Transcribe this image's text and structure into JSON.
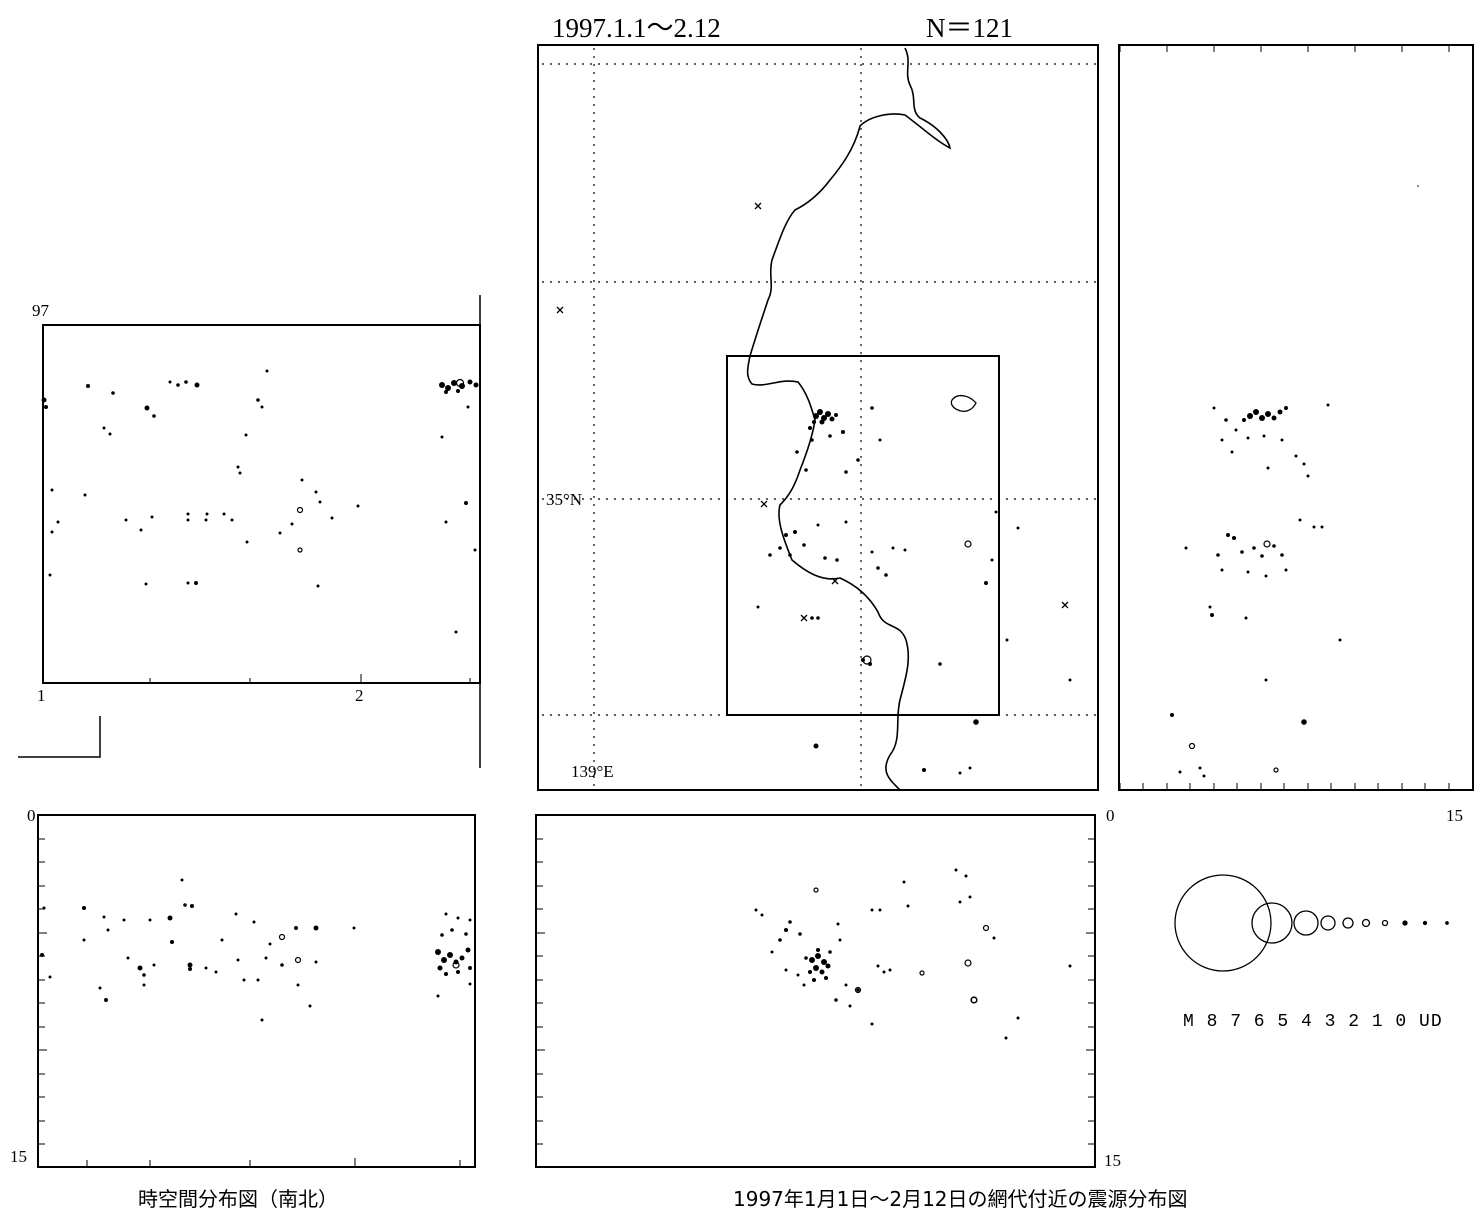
{
  "header": {
    "period": "1997.1.1～2.12",
    "count": "N＝121"
  },
  "map": {
    "lat_label": "35°N",
    "lon_label": "139°E"
  },
  "time_space": {
    "year_label": "97",
    "date_start": "1",
    "date_mid": "2"
  },
  "depth": {
    "left_top": "0",
    "left_bottom": "15",
    "right_top": "0",
    "right_end": "15",
    "center_bottom": "15"
  },
  "legend": {
    "scale": "M 8   7  6 5 4 3 2 1 0  UD"
  },
  "captions": {
    "left": "時空間分布図（南北）",
    "center": "1997年1月1日～2月12日の網代付近の震源分布図"
  }
}
